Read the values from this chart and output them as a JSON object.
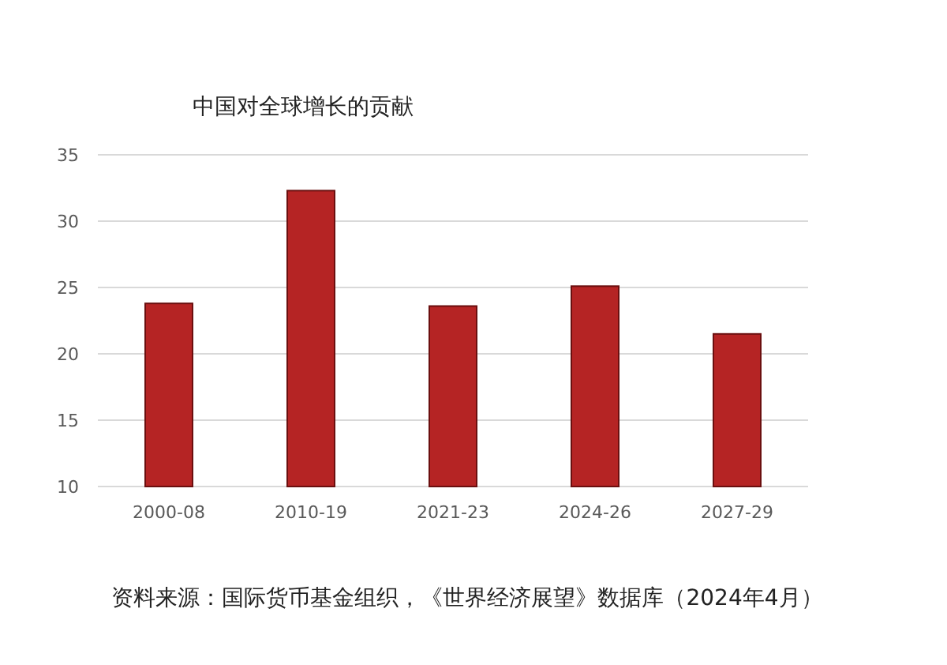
{
  "chart_data": {
    "type": "bar",
    "title": "中国对全球增长的贡献",
    "categories": [
      "2000-08",
      "2010-19",
      "2021-23",
      "2024-26",
      "2027-29"
    ],
    "values": [
      23.8,
      32.3,
      23.6,
      25.1,
      21.5
    ],
    "color": "#b52424",
    "ylim": [
      10,
      35
    ],
    "yticks": [
      10,
      15,
      20,
      25,
      30,
      35
    ],
    "grid": "y",
    "annotations": [
      "资料来源：国际货币基金组织，《世界经济展望》数据库（2024年4月）"
    ]
  }
}
